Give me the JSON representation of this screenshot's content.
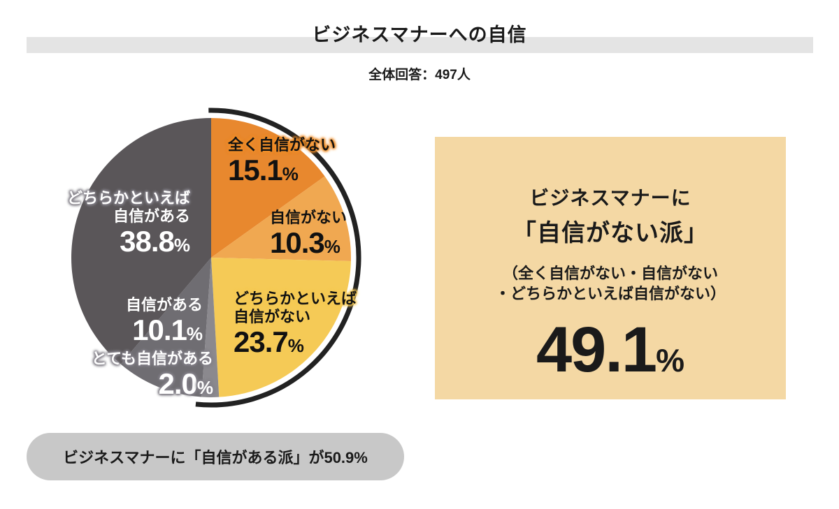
{
  "title": "ビジネスマナーへの自信",
  "subtitle": "全体回答：497人",
  "unit": "%",
  "chart_data": {
    "type": "pie",
    "title": "ビジネスマナーへの自信",
    "sample_note": "全体回答：497人",
    "start_angle_deg": 0,
    "direction": "clockwise",
    "segments": [
      {
        "label": "全く自信がない",
        "value": 15.1,
        "color": "#e8882e"
      },
      {
        "label": "自信がない",
        "value": 10.3,
        "color": "#f0a851"
      },
      {
        "label": "どちらかといえば自信がない",
        "value": 23.7,
        "color": "#f5ca56"
      },
      {
        "label": "とても自信がある",
        "value": 2.0,
        "color": "#8b898e"
      },
      {
        "label": "自信がある",
        "value": 10.1,
        "color": "#6f6d72"
      },
      {
        "label": "どちらかといえば自信がある",
        "value": 38.8,
        "color": "#5a5659"
      }
    ],
    "highlight_arc": {
      "covers": "自信がない派",
      "from_deg": -1,
      "to_deg": 186,
      "color": "#222222",
      "stroke_width": 7
    },
    "annotations": {
      "not_confident_total": 49.1,
      "confident_total": 50.9
    }
  },
  "pie_labels": {
    "seg1": {
      "line1": "全く自信がない",
      "value": "15.1"
    },
    "seg2": {
      "line1": "自信がない",
      "value": "10.3"
    },
    "seg3": {
      "line1": "どちらかといえば",
      "line2": "自信がない",
      "value": "23.7"
    },
    "seg4": {
      "line1": "とても自信がある",
      "value": "2.0"
    },
    "seg5": {
      "line1": "自信がある",
      "value": "10.1"
    },
    "seg6": {
      "line1": "どちらかといえば",
      "line2": "自信がある",
      "value": "38.8"
    }
  },
  "summary_box": {
    "line1": "ビジネスマナーに",
    "line2": "「自信がない派」",
    "note_line1": "（全く自信がない・自信がない",
    "note_line2": "・どちらかといえば自信がない）",
    "value": "49.1"
  },
  "footer_pill": {
    "text": "ビジネスマナーに「自信がある派」が50.9%"
  }
}
